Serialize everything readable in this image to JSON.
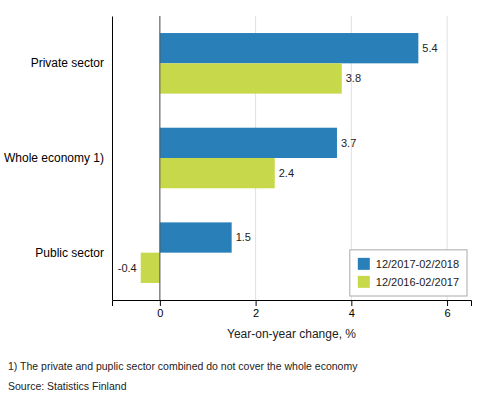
{
  "chart_data": {
    "type": "bar",
    "orientation": "horizontal",
    "categories": [
      "Public sector",
      "Whole economy 1)",
      "Private sector"
    ],
    "series": [
      {
        "name": "12/2017-02/2018",
        "color": "#2980B9",
        "values": [
          1.5,
          3.7,
          5.4
        ]
      },
      {
        "name": "12/2016-02/2017",
        "color": "#C8D84B",
        "values": [
          -0.4,
          2.4,
          3.8
        ]
      }
    ],
    "xlabel": "Year-on-year change, %",
    "xlim": [
      -1.0,
      6.5
    ],
    "xticks": [
      0,
      2,
      4,
      6
    ],
    "grid": true,
    "legend": "lower right",
    "data_labels": true,
    "annotations": [
      "1) The private and puplic sector combined do not cover the whole economy",
      "Source: Statistics Finland"
    ]
  }
}
